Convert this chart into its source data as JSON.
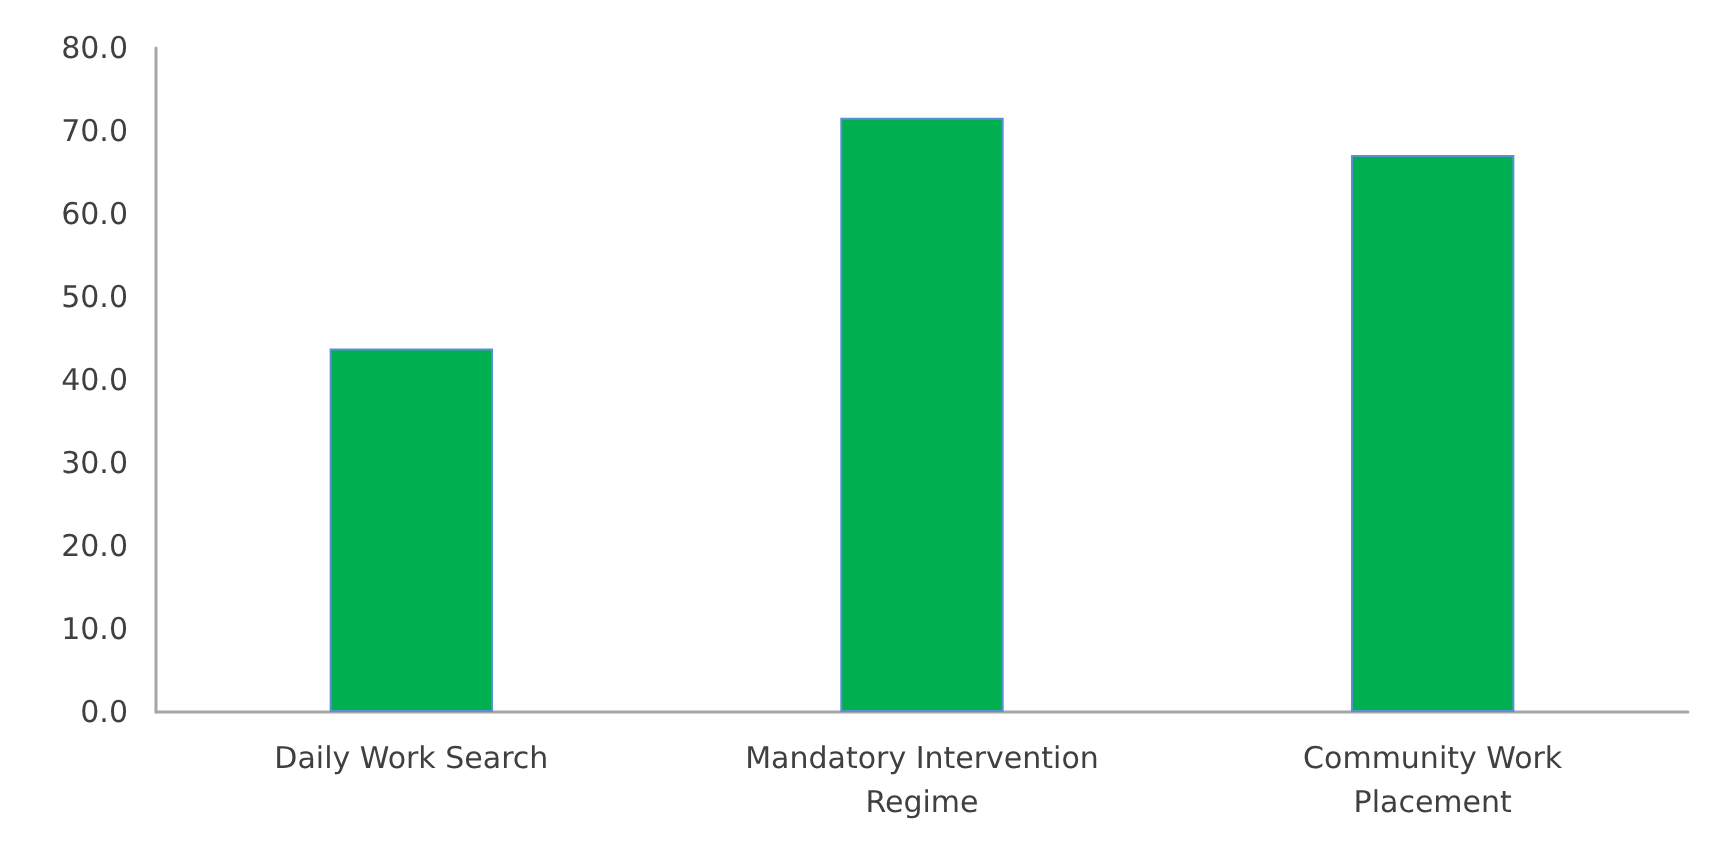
{
  "chart_data": {
    "type": "bar",
    "categories": [
      "Daily Work Search",
      "Mandatory Intervention Regime",
      "Community Work Placement"
    ],
    "values": [
      43.8,
      71.6,
      67.1
    ],
    "color": "#00b050",
    "ylim": [
      0,
      80
    ],
    "yticks": [
      {
        "value": 0,
        "label": "0.0"
      },
      {
        "value": 10,
        "label": "10.0"
      },
      {
        "value": 20,
        "label": "20.0"
      },
      {
        "value": 30,
        "label": "30.0"
      },
      {
        "value": 40,
        "label": "40.0"
      },
      {
        "value": 50,
        "label": "50.0"
      },
      {
        "value": 60,
        "label": "60.0"
      },
      {
        "value": 70,
        "label": "70.0"
      },
      {
        "value": 80,
        "label": "80.0"
      }
    ],
    "grid": false
  }
}
